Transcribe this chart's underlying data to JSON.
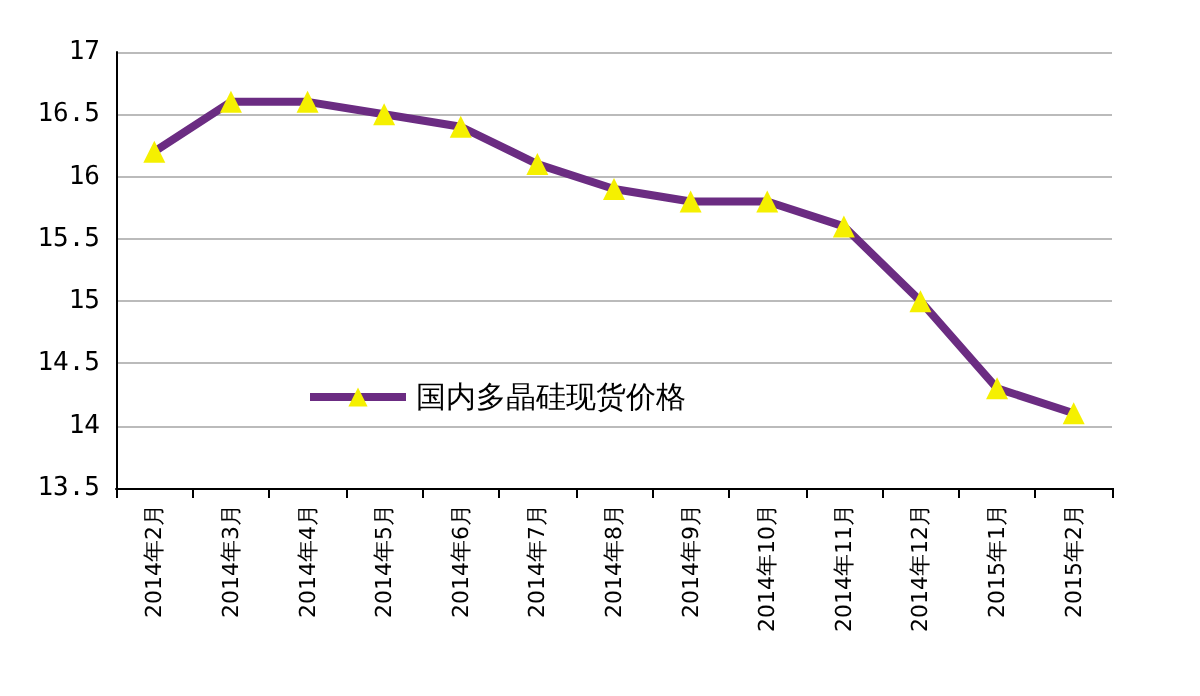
{
  "chart_data": {
    "type": "line",
    "categories": [
      "2014年2月",
      "2014年3月",
      "2014年4月",
      "2014年5月",
      "2014年6月",
      "2014年7月",
      "2014年8月",
      "2014年9月",
      "2014年10月",
      "2014年11月",
      "2014年12月",
      "2015年1月",
      "2015年2月"
    ],
    "series": [
      {
        "name": "国内多晶硅现货价格",
        "color": "#6b2c82",
        "values": [
          16.2,
          16.6,
          16.6,
          16.5,
          16.4,
          16.1,
          15.9,
          15.8,
          15.8,
          15.6,
          15.0,
          14.3,
          14.1
        ]
      }
    ],
    "ylim": [
      13.5,
      17
    ],
    "yticks": [
      13.5,
      14,
      14.5,
      15,
      15.5,
      16,
      16.5,
      17
    ],
    "grid": "y",
    "legend": "bottom",
    "marker": "triangle",
    "line_style": "solid"
  }
}
